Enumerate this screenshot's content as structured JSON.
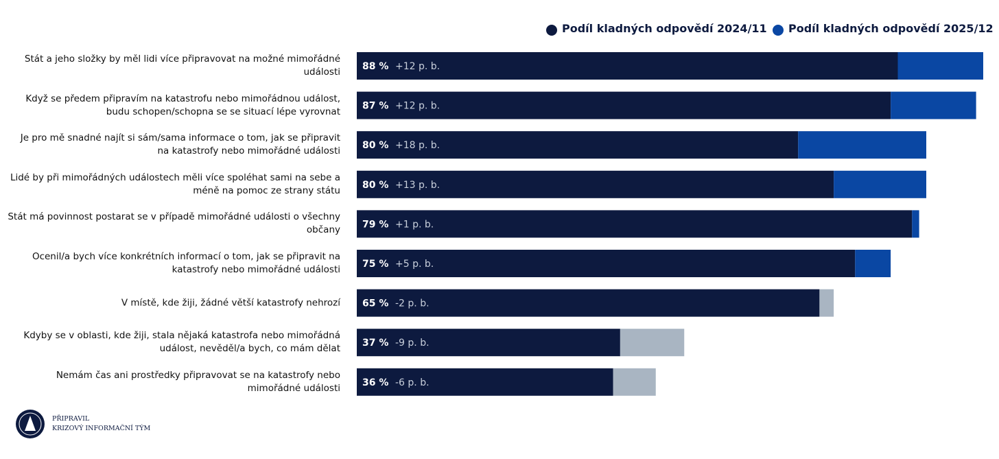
{
  "chart_data": {
    "type": "bar",
    "orientation": "horizontal",
    "categories": [
      "Stát a jeho složky by měl lidi více připravovat na možné mimořádné události",
      "Když se předem připravím na katastrofu nebo mimořádnou událost, budu schopen/schopna se se situací lépe vyrovnat",
      "Je pro mě snadné najít si sám/sama informace o tom, jak se připravit na katastrofy nebo mimořádné události",
      "Lidé by při mimořádných událostech měli více spoléhat sami na sebe a méně na pomoc ze strany státu",
      "Stát má povinnost postarat se v případě mimořádné události o všechny občany",
      "Ocenil/a bych více konkrétních informací o tom, jak se připravit na katastrofy nebo mimořádné události",
      "V místě, kde žiji, žádné větší katastrofy nehrozí",
      "Kdyby se v oblasti, kde žiji, stala nějaká katastrofa nebo mimořádná událost, nevěděl/a bych, co mám dělat",
      "Nemám čas ani prostředky připravovat se na katastrofy nebo mimořádné události"
    ],
    "series": [
      {
        "name": "Podíl kladných odpovědí 2024/11",
        "color": "#0d1a3f",
        "values": [
          76,
          75,
          62,
          67,
          78,
          70,
          67,
          46,
          42
        ]
      },
      {
        "name": "Podíl kladných odpovědí 2025/12",
        "color": "#0a47a3",
        "values": [
          88,
          87,
          80,
          80,
          79,
          75,
          65,
          37,
          36
        ],
        "value_labels": [
          "88 %",
          "87 %",
          "80 %",
          "80 %",
          "79 %",
          "75 %",
          "65 %",
          "37 %",
          "36 %"
        ]
      }
    ],
    "changes": [
      12,
      12,
      18,
      13,
      1,
      5,
      -2,
      -9,
      -6
    ],
    "change_labels": [
      "+12 p. b.",
      "+12 p. b.",
      "+18 p. b.",
      "+13 p. b.",
      "+1 p. b.",
      "+5 p. b.",
      "-2 p. b.",
      "-9 p. b.",
      "-6 p. b."
    ],
    "decline_color": "#a9b5c2",
    "xlim": [
      0,
      88
    ],
    "legend": "top-right"
  },
  "footer": {
    "line1": "PŘIPRAVIL",
    "line2": "KRIZOVÝ INFORMAČNÍ TÝM"
  }
}
